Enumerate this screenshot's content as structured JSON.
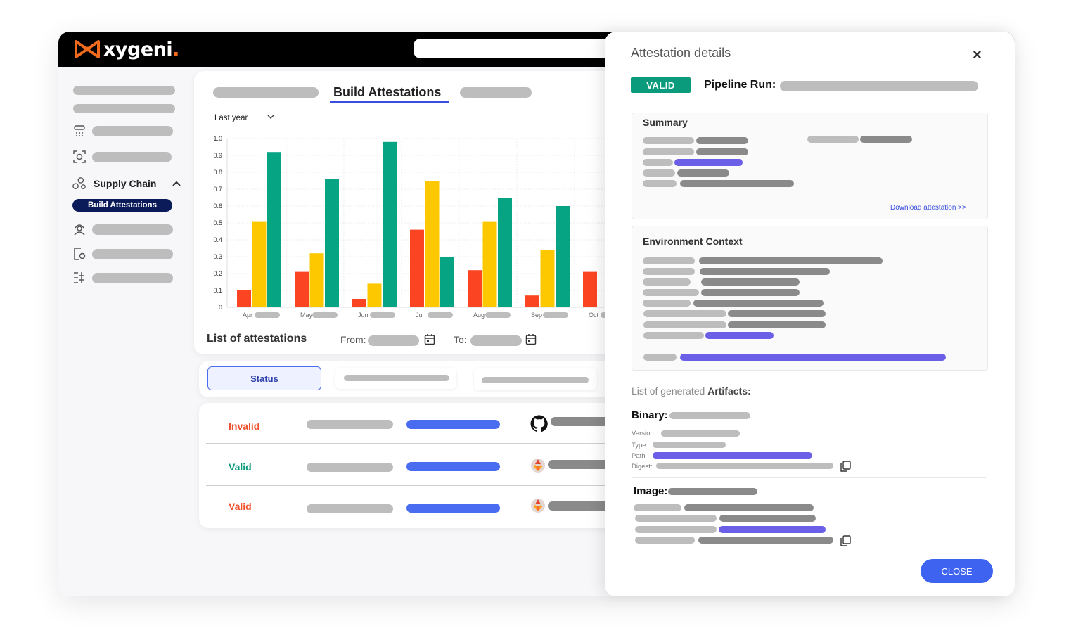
{
  "brand": {
    "logo_text": "xygeni",
    "logo_dot": "."
  },
  "sidebar": {
    "supply_chain_label": "Supply Chain",
    "active_item": "Build Attestations"
  },
  "main": {
    "active_tab": "Build Attestations",
    "range_select": "Last year",
    "list_title": "List of attestations",
    "from_label": "From:",
    "to_label": "To:",
    "filter_status": "Status",
    "rows": [
      {
        "status": "Invalid",
        "color": "#f0502b"
      },
      {
        "status": "Valid",
        "color": "#0a9b7d"
      },
      {
        "status": "Valid",
        "color": "#f0502b"
      }
    ]
  },
  "chart_data": {
    "type": "bar",
    "categories": [
      "Apr",
      "May",
      "Jun",
      "Jul",
      "Aug",
      "Sep",
      "Oct"
    ],
    "series": [
      {
        "values": [
          0.1,
          0.21,
          0.05,
          0.46,
          0.22,
          0.07,
          0.21
        ],
        "color": "#fb4421"
      },
      {
        "values": [
          0.51,
          0.32,
          0.14,
          0.75,
          0.51,
          0.34,
          null
        ],
        "color": "#fdc800"
      },
      {
        "values": [
          0.92,
          0.76,
          0.98,
          0.3,
          0.65,
          0.6,
          null
        ],
        "color": "#07a484"
      }
    ],
    "yticks": [
      "0",
      "0.1",
      "0.2",
      "0.3",
      "0.4",
      "0.5",
      "0.6",
      "0.7",
      "0.8",
      "0.9",
      "1.0"
    ],
    "ylim": [
      0,
      1.0
    ],
    "grid": true
  },
  "panel": {
    "title": "Attestation details",
    "close_x": "×",
    "badge": "VALID",
    "pipeline_label": "Pipeline Run:",
    "summary_title": "Summary",
    "download_link": "Download attestation >>",
    "env_title": "Environment Context",
    "artifacts_prefix": "List of generated ",
    "artifacts_bold": "Artifacts:",
    "binary_label": "Binary:",
    "version_label": "Version:",
    "type_label": "Type:",
    "path_label": "Path",
    "digest_label": "Digest:",
    "image_label": "Image:",
    "close_button": "CLOSE"
  }
}
